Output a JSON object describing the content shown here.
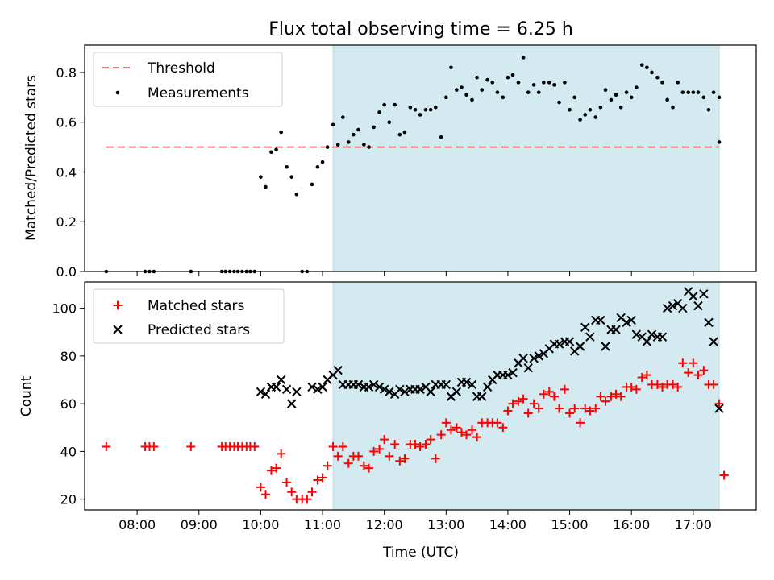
{
  "chart_data": [
    {
      "type": "scatter",
      "title": "Flux total observing time = 6.25 h",
      "xlabel": "",
      "ylabel": "Matched/Predicted stars",
      "ylim": [
        0,
        0.91
      ],
      "xlim": [
        7.15,
        18.02
      ],
      "yticks": [
        0.0,
        0.2,
        0.4,
        0.6,
        0.8
      ],
      "ytick_labels": [
        "0.0",
        "0.2",
        "0.4",
        "0.6",
        "0.8"
      ],
      "shaded_span": [
        11.17,
        17.42
      ],
      "shade_color": "#d3eaf1",
      "legend_location": "upper-left",
      "threshold": {
        "name": "Threshold",
        "value": 0.5,
        "x_range": [
          7.5,
          17.42
        ],
        "color": "#ff7070"
      },
      "series": [
        {
          "name": "Measurements",
          "color": "#000000",
          "x": [
            7.5,
            8.13,
            8.2,
            8.27,
            8.87,
            9.37,
            9.43,
            9.5,
            9.57,
            9.63,
            9.7,
            9.77,
            9.83,
            9.9,
            10.0,
            10.08,
            10.17,
            10.25,
            10.33,
            10.42,
            10.5,
            10.58,
            10.67,
            10.75,
            10.83,
            10.92,
            11.0,
            11.08,
            11.17,
            11.25,
            11.33,
            11.42,
            11.5,
            11.58,
            11.67,
            11.75,
            11.83,
            11.92,
            12.0,
            12.08,
            12.17,
            12.25,
            12.33,
            12.42,
            12.5,
            12.58,
            12.67,
            12.75,
            12.83,
            12.92,
            13.0,
            13.08,
            13.17,
            13.25,
            13.33,
            13.42,
            13.5,
            13.58,
            13.67,
            13.75,
            13.83,
            13.92,
            14.0,
            14.08,
            14.17,
            14.25,
            14.33,
            14.42,
            14.5,
            14.58,
            14.67,
            14.75,
            14.83,
            14.92,
            15.0,
            15.08,
            15.17,
            15.25,
            15.33,
            15.42,
            15.5,
            15.58,
            15.67,
            15.75,
            15.83,
            15.92,
            16.0,
            16.08,
            16.17,
            16.25,
            16.33,
            16.42,
            16.5,
            16.58,
            16.67,
            16.75,
            16.83,
            16.92,
            17.0,
            17.08,
            17.17,
            17.25,
            17.33,
            17.42
          ],
          "y": [
            0.0,
            0.0,
            0.0,
            0.0,
            0.0,
            0.0,
            0.0,
            0.0,
            0.0,
            0.0,
            0.0,
            0.0,
            0.0,
            0.0,
            0.38,
            0.34,
            0.48,
            0.49,
            0.56,
            0.42,
            0.38,
            0.31,
            0.0,
            0.0,
            0.35,
            0.42,
            0.44,
            0.5,
            0.59,
            0.51,
            0.62,
            0.52,
            0.55,
            0.57,
            0.51,
            0.5,
            0.58,
            0.64,
            0.67,
            0.6,
            0.67,
            0.55,
            0.56,
            0.66,
            0.65,
            0.63,
            0.65,
            0.65,
            0.66,
            0.54,
            0.7,
            0.82,
            0.73,
            0.74,
            0.71,
            0.69,
            0.78,
            0.73,
            0.77,
            0.76,
            0.72,
            0.7,
            0.78,
            0.79,
            0.76,
            0.86,
            0.72,
            0.75,
            0.72,
            0.76,
            0.76,
            0.75,
            0.68,
            0.76,
            0.65,
            0.7,
            0.61,
            0.63,
            0.65,
            0.62,
            0.66,
            0.73,
            0.69,
            0.71,
            0.66,
            0.72,
            0.7,
            0.74,
            0.83,
            0.82,
            0.8,
            0.78,
            0.76,
            0.69,
            0.66,
            0.76,
            0.72,
            0.72,
            0.72,
            0.72,
            0.7,
            0.65,
            0.72,
            0.7
          ]
        }
      ],
      "extra_point": {
        "x": 17.42,
        "y": 0.52
      }
    },
    {
      "type": "scatter",
      "xlabel": "Time (UTC)",
      "ylabel": "Count",
      "ylim": [
        15.5,
        111
      ],
      "xlim": [
        7.15,
        18.02
      ],
      "yticks": [
        20,
        40,
        60,
        80,
        100
      ],
      "ytick_labels": [
        "20",
        "40",
        "60",
        "80",
        "100"
      ],
      "xticks": [
        8,
        9,
        10,
        11,
        12,
        13,
        14,
        15,
        16,
        17
      ],
      "xtick_labels": [
        "08:00",
        "09:00",
        "10:00",
        "11:00",
        "12:00",
        "13:00",
        "14:00",
        "15:00",
        "16:00",
        "17:00"
      ],
      "shaded_span": [
        11.17,
        17.42
      ],
      "legend_location": "upper-left",
      "series": [
        {
          "name": "Matched stars",
          "color": "#ff0000",
          "marker": "plus",
          "x": [
            7.5,
            8.13,
            8.2,
            8.27,
            8.87,
            9.37,
            9.43,
            9.5,
            9.57,
            9.63,
            9.7,
            9.77,
            9.83,
            9.9,
            10.0,
            10.08,
            10.17,
            10.25,
            10.33,
            10.42,
            10.5,
            10.58,
            10.67,
            10.75,
            10.83,
            10.92,
            11.0,
            11.08,
            11.17,
            11.25,
            11.33,
            11.42,
            11.5,
            11.58,
            11.67,
            11.75,
            11.83,
            11.92,
            12.0,
            12.08,
            12.17,
            12.25,
            12.33,
            12.42,
            12.5,
            12.58,
            12.67,
            12.75,
            12.83,
            12.92,
            13.0,
            13.08,
            13.17,
            13.25,
            13.33,
            13.42,
            13.5,
            13.58,
            13.67,
            13.75,
            13.83,
            13.92,
            14.0,
            14.08,
            14.17,
            14.25,
            14.33,
            14.42,
            14.5,
            14.58,
            14.67,
            14.75,
            14.83,
            14.92,
            15.0,
            15.08,
            15.17,
            15.25,
            15.33,
            15.42,
            15.5,
            15.58,
            15.67,
            15.75,
            15.83,
            15.92,
            16.0,
            16.08,
            16.17,
            16.25,
            16.33,
            16.42,
            16.5,
            16.58,
            16.67,
            16.75,
            16.83,
            16.92,
            17.0,
            17.08,
            17.17,
            17.25,
            17.33,
            17.42,
            17.5
          ],
          "y": [
            42,
            42,
            42,
            42,
            42,
            42,
            42,
            42,
            42,
            42,
            42,
            42,
            42,
            42,
            25,
            22,
            32,
            33,
            39,
            27,
            23,
            20,
            20,
            20,
            23,
            28,
            29,
            34,
            42,
            38,
            42,
            35,
            38,
            38,
            34,
            33,
            40,
            41,
            45,
            38,
            43,
            36,
            37,
            43,
            43,
            42,
            43,
            45,
            37,
            47,
            52,
            49,
            50,
            48,
            47,
            49,
            46,
            52,
            52,
            52,
            52,
            50,
            57,
            60,
            61,
            62,
            56,
            60,
            58,
            64,
            65,
            63,
            58,
            66,
            56,
            58,
            52,
            58,
            57,
            58,
            63,
            61,
            63,
            64,
            63,
            67,
            67,
            66,
            71,
            72,
            68,
            68,
            67,
            68,
            68,
            67,
            77,
            73,
            77,
            72,
            74,
            68,
            68,
            60,
            30
          ]
        },
        {
          "name": "Predicted stars",
          "color": "#000000",
          "marker": "x",
          "x": [
            10.0,
            10.08,
            10.17,
            10.25,
            10.33,
            10.42,
            10.5,
            10.58,
            10.83,
            10.92,
            11.0,
            11.08,
            11.17,
            11.25,
            11.33,
            11.42,
            11.5,
            11.58,
            11.67,
            11.75,
            11.83,
            11.92,
            12.0,
            12.08,
            12.17,
            12.25,
            12.33,
            12.42,
            12.5,
            12.58,
            12.67,
            12.75,
            12.83,
            12.92,
            13.0,
            13.08,
            13.17,
            13.25,
            13.33,
            13.42,
            13.5,
            13.58,
            13.67,
            13.75,
            13.83,
            13.92,
            14.0,
            14.08,
            14.17,
            14.25,
            14.33,
            14.42,
            14.5,
            14.58,
            14.67,
            14.75,
            14.83,
            14.92,
            15.0,
            15.08,
            15.17,
            15.25,
            15.33,
            15.42,
            15.5,
            15.58,
            15.67,
            15.75,
            15.83,
            15.92,
            16.0,
            16.08,
            16.17,
            16.25,
            16.33,
            16.42,
            16.5,
            16.58,
            16.67,
            16.75,
            16.83,
            16.92,
            17.0,
            17.08,
            17.17,
            17.25,
            17.33,
            17.42
          ],
          "y": [
            65,
            64,
            67,
            67,
            70,
            66,
            60,
            65,
            67,
            66,
            67,
            70,
            72,
            74,
            68,
            68,
            68,
            68,
            67,
            67,
            68,
            67,
            66,
            65,
            64,
            66,
            65,
            66,
            66,
            66,
            67,
            65,
            68,
            68,
            68,
            63,
            65,
            69,
            69,
            68,
            63,
            63,
            67,
            70,
            72,
            72,
            72,
            73,
            77,
            79,
            75,
            79,
            80,
            81,
            83,
            85,
            85,
            86,
            86,
            82,
            84,
            92,
            88,
            95,
            95,
            84,
            91,
            91,
            96,
            94,
            95,
            89,
            88,
            86,
            89,
            88,
            88,
            100,
            101,
            102,
            100,
            107,
            105,
            101,
            106,
            94,
            86,
            58
          ]
        }
      ]
    }
  ]
}
